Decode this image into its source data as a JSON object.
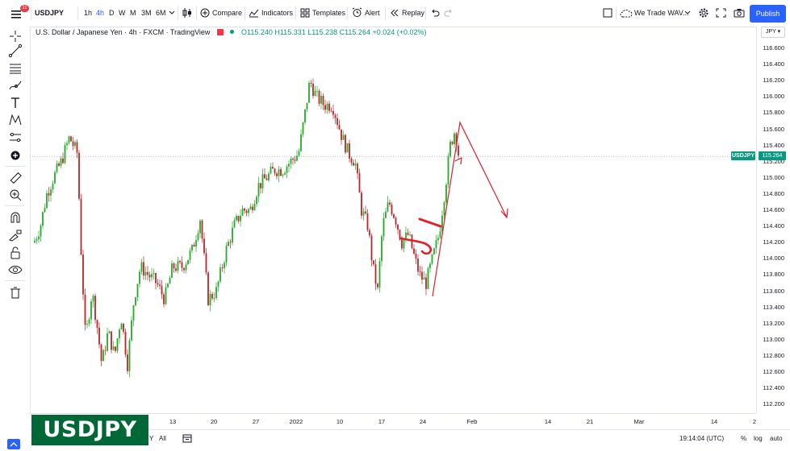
{
  "topbar": {
    "menu_badge": "11",
    "symbol": "USDJPY",
    "timeframes": [
      "1h",
      "4h",
      "D",
      "W",
      "M",
      "3M",
      "6M"
    ],
    "active_timeframe": "4h",
    "compare_label": "Compare",
    "indicators_label": "Indicators",
    "templates_label": "Templates",
    "alert_label": "Alert",
    "replay_label": "Replay",
    "layout_name": "We Trade WAV...",
    "publish_label": "Publish"
  },
  "legend": {
    "title": "U.S. Dollar / Japanese Yen · 4h · FXCM · TradingView",
    "ohlc": "O115.240 H115.331 L115.238 C115.264 +0.024 (+0.02%)"
  },
  "price_scale": {
    "currency": "JPY ▾",
    "ticks": [
      "116.600",
      "116.400",
      "116.200",
      "116.000",
      "115.800",
      "115.600",
      "115.400",
      "115.200",
      "115.000",
      "114.800",
      "114.600",
      "114.400",
      "114.200",
      "114.000",
      "113.800",
      "113.600",
      "113.400",
      "113.200",
      "113.000",
      "112.800",
      "112.600",
      "112.400",
      "112.200"
    ],
    "symbol_tag": "USDJPY",
    "current_price": "115.264"
  },
  "time_scale": {
    "ticks": [
      "13",
      "20",
      "27",
      "2022",
      "10",
      "17",
      "24",
      "Feb",
      "14",
      "21",
      "Mar",
      "14",
      "2"
    ]
  },
  "bottom": {
    "range_partial": "Y",
    "range_all": "All",
    "clock": "19:14:04 (UTC)",
    "pct_label": "%",
    "log_label": "log",
    "auto_label": "auto"
  },
  "watermark": "USDJPY",
  "colors": {
    "up": "#089981",
    "up_bright": "#22ab26",
    "down": "#b8262a",
    "drawing": "#e0202a",
    "accent": "#2962ff"
  },
  "icons": [
    "menu-icon",
    "crosshair-icon",
    "trend-line-icon",
    "fib-icon",
    "brush-icon",
    "text-icon",
    "pattern-icon",
    "prediction-icon",
    "add-icon",
    "ruler-icon",
    "zoom-in-icon",
    "magnet-icon",
    "lock-draw-icon",
    "lock-icon",
    "eye-icon",
    "trash-icon"
  ]
}
